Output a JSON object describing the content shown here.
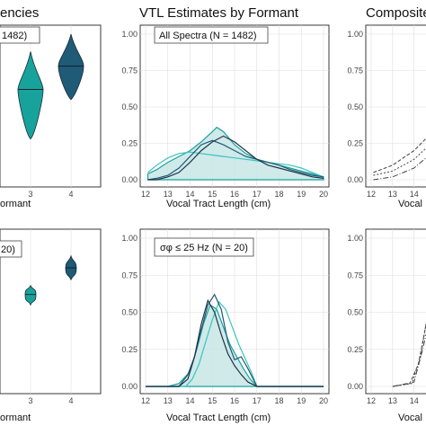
{
  "colors": {
    "teal": "#17a39b",
    "teal_light": "#3cc3be",
    "navy": "#1f5a77",
    "dark": "#21334a",
    "fill": "#c7e6e5"
  },
  "titles": {
    "left": "encies",
    "middle": "VTL Estimates by Formant",
    "right": "Composite"
  },
  "x_axis_label": "Vocal Tract Length (cm)",
  "left_x_axis_label": "ormant",
  "right_x_axis_label": "Vocal",
  "chart_data": [
    {
      "panel": "left-top",
      "type": "violin",
      "label_fragment": "1482)",
      "categories": [
        "3",
        "4"
      ],
      "series": [
        {
          "category": "3",
          "median": 0.62,
          "min": 0.28,
          "max": 0.88,
          "color": "#17a39b"
        },
        {
          "category": "4",
          "median": 0.78,
          "min": 0.55,
          "max": 1.0,
          "color": "#1f5a77"
        }
      ]
    },
    {
      "panel": "middle-top",
      "type": "area",
      "annotation": "All Spectra (N = 1482)",
      "x_ticks": [
        "12",
        "13",
        "14",
        "15",
        "16",
        "17",
        "18",
        "19",
        "20"
      ],
      "y_ticks": [
        "0.00",
        "0.25",
        "0.50",
        "0.75",
        "1.00"
      ],
      "xlim": [
        12,
        20
      ],
      "ylim": [
        0,
        1.0
      ],
      "series": [
        {
          "color": "#c7e6e5",
          "fill": true,
          "x": [
            12.1,
            12.5,
            13,
            13.5,
            14,
            14.5,
            15,
            15.2,
            15.5,
            16,
            16.5,
            17,
            17.5,
            18,
            18.5,
            19,
            19.5,
            20
          ],
          "y": [
            0.04,
            0.07,
            0.12,
            0.16,
            0.2,
            0.26,
            0.33,
            0.36,
            0.33,
            0.24,
            0.18,
            0.14,
            0.12,
            0.1,
            0.08,
            0.06,
            0.04,
            0.02
          ]
        },
        {
          "color": "#3cc3be",
          "x": [
            12.1,
            12.5,
            13,
            13.5,
            14,
            14.5,
            15,
            15.5,
            16,
            16.5,
            17,
            17.5,
            18,
            18.5,
            19,
            19.5,
            20
          ],
          "y": [
            0.05,
            0.1,
            0.15,
            0.18,
            0.19,
            0.18,
            0.17,
            0.16,
            0.15,
            0.14,
            0.13,
            0.12,
            0.11,
            0.1,
            0.08,
            0.05,
            0.02
          ]
        },
        {
          "color": "#1f5a77",
          "x": [
            12.1,
            12.5,
            13,
            13.5,
            14,
            14.5,
            15,
            15.5,
            16,
            16.5,
            17,
            17.5,
            18,
            18.5,
            19,
            19.5,
            20
          ],
          "y": [
            0.0,
            0.01,
            0.03,
            0.08,
            0.16,
            0.24,
            0.27,
            0.24,
            0.2,
            0.16,
            0.14,
            0.12,
            0.1,
            0.07,
            0.05,
            0.03,
            0.02
          ]
        },
        {
          "color": "#21334a",
          "x": [
            12.1,
            12.5,
            13,
            13.5,
            14,
            14.5,
            15,
            15.5,
            16,
            16.5,
            17,
            17.5,
            18,
            18.5,
            19,
            19.5,
            20
          ],
          "y": [
            0.0,
            0.0,
            0.02,
            0.05,
            0.12,
            0.2,
            0.26,
            0.3,
            0.26,
            0.2,
            0.14,
            0.1,
            0.08,
            0.06,
            0.04,
            0.02,
            0.01
          ]
        }
      ]
    },
    {
      "panel": "right-top",
      "type": "line",
      "y_ticks": [
        "0.00",
        "0.25",
        "0.50",
        "0.75",
        "1.00"
      ],
      "x_ticks": [
        "12",
        "13",
        "14"
      ],
      "series": [
        {
          "color": "#444444",
          "x": [
            12.1,
            13,
            14,
            14.8
          ],
          "y": [
            0.05,
            0.1,
            0.2,
            0.32
          ]
        },
        {
          "color": "#444444",
          "x": [
            12.1,
            13,
            14,
            14.8
          ],
          "y": [
            0.03,
            0.06,
            0.14,
            0.25
          ]
        },
        {
          "color": "#444444",
          "x": [
            12.1,
            13,
            14,
            14.8
          ],
          "y": [
            0.0,
            0.02,
            0.08,
            0.18
          ]
        }
      ]
    },
    {
      "panel": "left-bottom",
      "type": "violin",
      "label_fragment": "20)",
      "categories": [
        "3",
        "4"
      ],
      "series": [
        {
          "category": "3",
          "median": 0.62,
          "min": 0.55,
          "max": 0.68,
          "color": "#17a39b"
        },
        {
          "category": "4",
          "median": 0.8,
          "min": 0.72,
          "max": 0.88,
          "color": "#1f5a77"
        }
      ]
    },
    {
      "panel": "middle-bottom",
      "type": "area",
      "annotation": "σφ ≤ 25 Hz (N = 20)",
      "x_ticks": [
        "12",
        "13",
        "14",
        "15",
        "16",
        "17",
        "18",
        "19",
        "20"
      ],
      "y_ticks": [
        "0.00",
        "0.25",
        "0.50",
        "0.75",
        "1.00"
      ],
      "xlim": [
        12,
        20
      ],
      "ylim": [
        0,
        1.0
      ],
      "series": [
        {
          "color": "#c7e6e5",
          "fill": true,
          "x": [
            12,
            13,
            13.5,
            14,
            14.3,
            14.6,
            14.9,
            15.2,
            15.5,
            15.8,
            16.1,
            16.4,
            16.7,
            17,
            20
          ],
          "y": [
            0,
            0,
            0.02,
            0.1,
            0.25,
            0.42,
            0.55,
            0.52,
            0.4,
            0.28,
            0.2,
            0.12,
            0.05,
            0,
            0
          ]
        },
        {
          "color": "#3cc3be",
          "x": [
            12,
            13.8,
            14.1,
            14.4,
            14.7,
            15,
            15.3,
            15.6,
            15.9,
            16.2,
            16.5,
            16.8,
            17,
            20
          ],
          "y": [
            0,
            0,
            0.05,
            0.15,
            0.3,
            0.45,
            0.57,
            0.52,
            0.4,
            0.28,
            0.18,
            0.08,
            0,
            0
          ]
        },
        {
          "color": "#1f5a77",
          "x": [
            12,
            13.5,
            13.9,
            14.2,
            14.5,
            14.8,
            15.1,
            15.4,
            15.7,
            16,
            16.3,
            16.6,
            17,
            20
          ],
          "y": [
            0,
            0,
            0.08,
            0.2,
            0.38,
            0.55,
            0.62,
            0.52,
            0.3,
            0.18,
            0.2,
            0.12,
            0,
            0
          ]
        },
        {
          "color": "#21334a",
          "x": [
            12,
            13.5,
            13.9,
            14.2,
            14.5,
            14.8,
            15.1,
            15.4,
            15.7,
            16,
            16.3,
            16.6,
            17,
            20
          ],
          "y": [
            0,
            0,
            0.05,
            0.2,
            0.42,
            0.58,
            0.5,
            0.35,
            0.22,
            0.14,
            0.08,
            0.03,
            0,
            0
          ]
        }
      ]
    },
    {
      "panel": "right-bottom",
      "type": "line",
      "y_ticks": [
        "0.00",
        "0.25",
        "0.50",
        "0.75",
        "1.00"
      ],
      "x_ticks": [
        "12",
        "13",
        "14"
      ],
      "series": [
        {
          "color": "#444444",
          "x": [
            13,
            13.8,
            14.2,
            14.6,
            14.8
          ],
          "y": [
            0.0,
            0.02,
            0.15,
            0.45,
            0.75
          ]
        },
        {
          "color": "#444444",
          "x": [
            13,
            13.9,
            14.3,
            14.7,
            14.8
          ],
          "y": [
            0.0,
            0.02,
            0.2,
            0.55,
            0.6
          ]
        },
        {
          "color": "#444444",
          "x": [
            13,
            14,
            14.4,
            14.8
          ],
          "y": [
            0.0,
            0.03,
            0.25,
            0.5
          ]
        }
      ]
    }
  ]
}
